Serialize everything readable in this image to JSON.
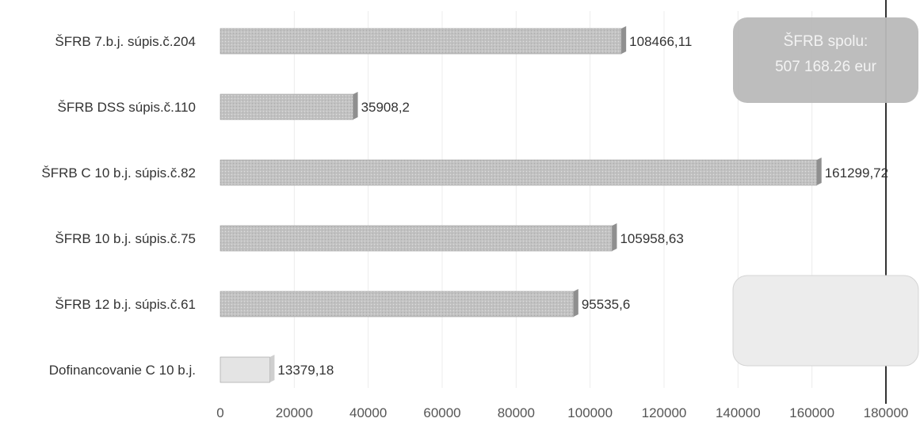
{
  "chart_data": {
    "type": "bar",
    "orientation": "horizontal",
    "title": "",
    "xlabel": "",
    "ylabel": "",
    "xlim": [
      0,
      180000
    ],
    "ticks": [
      0,
      20000,
      40000,
      60000,
      80000,
      100000,
      120000,
      140000,
      160000,
      180000
    ],
    "tick_labels": [
      "0",
      "20000",
      "40000",
      "60000",
      "80000",
      "100000",
      "120000",
      "140000",
      "160000",
      "180000"
    ],
    "grid": true,
    "legend": "none",
    "categories": [
      "ŠFRB 7.b.j. súpis.č.204",
      "ŠFRB DSS súpis.č.110",
      "ŠFRB C 10 b.j. súpis.č.82",
      "ŠFRB 10 b.j. súpis.č.75",
      "ŠFRB 12 b.j. súpis.č.61",
      "Dofinancovanie C 10 b.j."
    ],
    "values": [
      108466.11,
      35908.2,
      161299.72,
      105958.63,
      95535.6,
      13379.18
    ],
    "value_labels": [
      "108466,11",
      "35908,2",
      "161299,72",
      "105958,63",
      "95535,6",
      "13379,18"
    ],
    "colors": {
      "bar": "#c2c2c2",
      "bar_light": "#e4e4e4",
      "bar_edge": "#9a9a9a",
      "grid": "#ececec",
      "vertical_line": "#333333"
    },
    "annotations": [
      {
        "lines": [
          "ŠFRB spolu:",
          "507 168.26 eur"
        ],
        "style": "dark",
        "color": "#b9b9b9"
      },
      {
        "lines": [],
        "style": "light",
        "color": "#ececec"
      }
    ]
  }
}
